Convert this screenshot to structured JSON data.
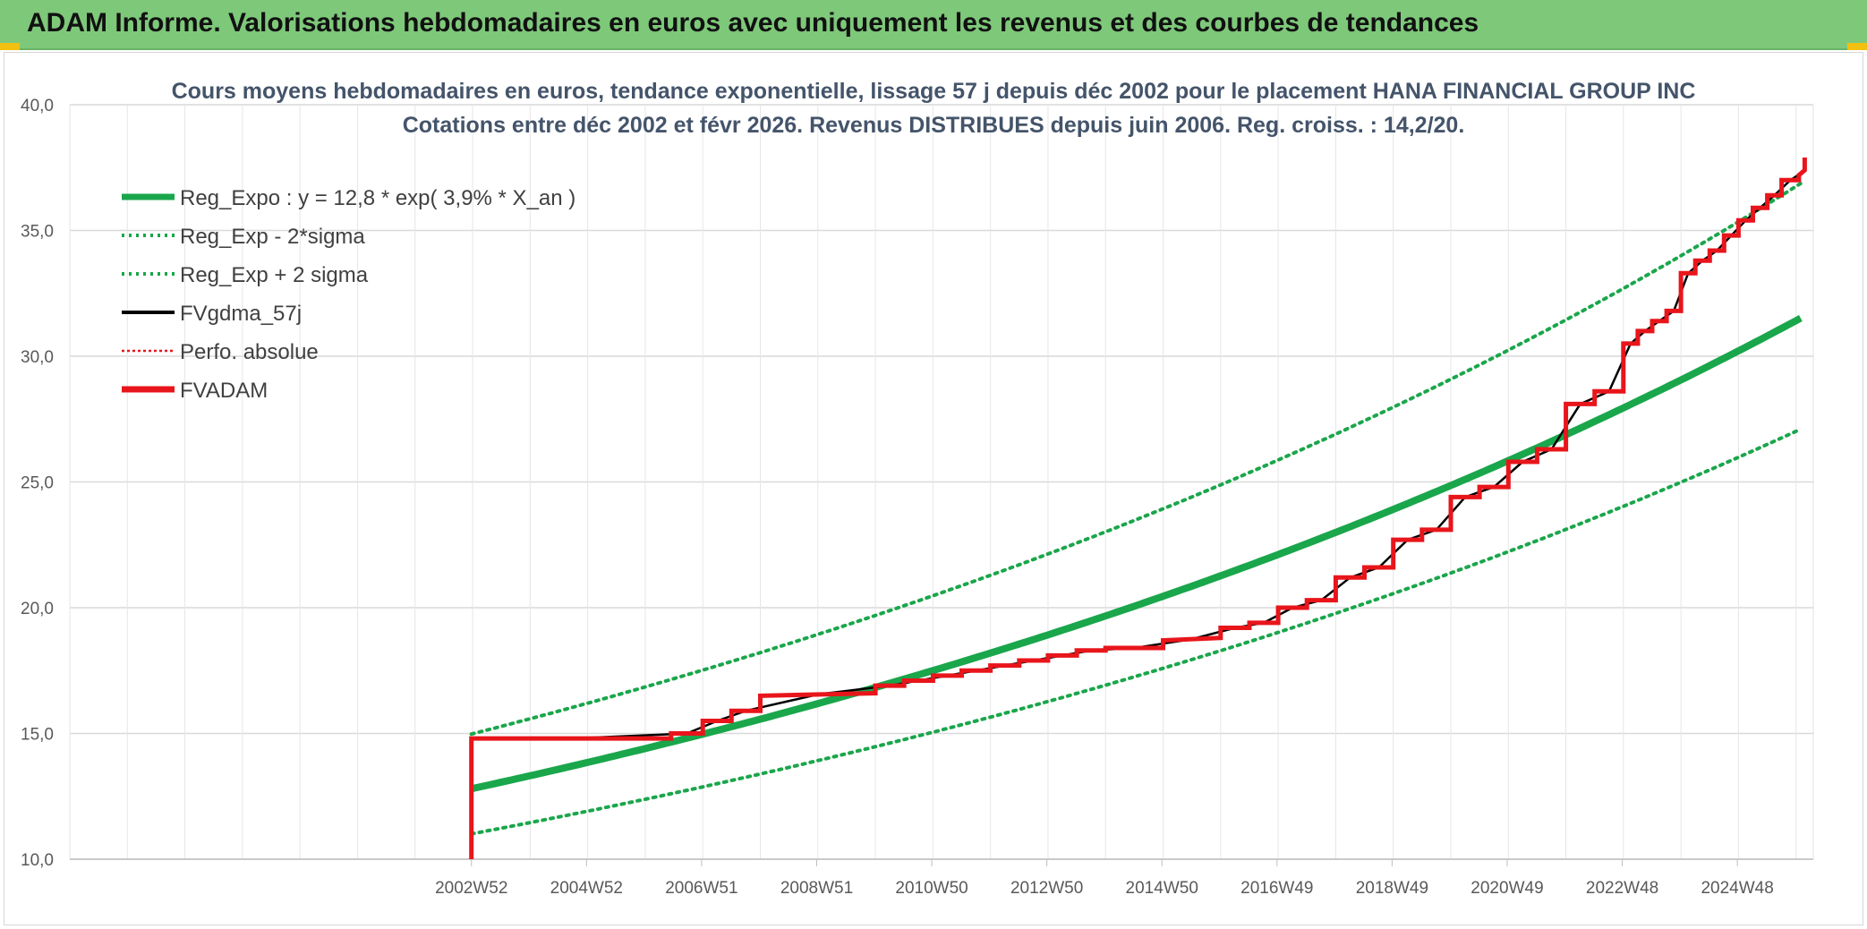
{
  "banner": {
    "title": "ADAM Informe. Valorisations hebdomadaires en euros avec uniquement les revenus et des courbes de tendances"
  },
  "colors": {
    "banner_bg": "#7ec87a",
    "reg_green": "#1aa64b",
    "fvgdma_black": "#000000",
    "fvadam_red": "#e8151b",
    "grid": "#d9d9d9"
  },
  "chart_data": {
    "type": "line",
    "title_lines": [
      "Cours moyens hebdomadaires en euros, tendance exponentielle, lissage 57 j depuis déc 2002 pour le placement HANA FINANCIAL GROUP INC",
      "Cotations entre déc 2002 et févr 2026. Revenus DISTRIBUES depuis juin 2006. Reg. croiss. : 14,2/20."
    ],
    "ylim": [
      10,
      40
    ],
    "y_ticks": [
      "10,0",
      "15,0",
      "20,0",
      "25,0",
      "30,0",
      "35,0",
      "40,0"
    ],
    "x_ticks": [
      "2002W52",
      "2004W52",
      "2006W51",
      "2008W51",
      "2010W50",
      "2012W50",
      "2014W50",
      "2016W49",
      "2018W49",
      "2020W49",
      "2022W48",
      "2024W48"
    ],
    "xlim_years": [
      1996.0,
      2026.3
    ],
    "grid": true,
    "legend_position": "top-left",
    "legend": [
      {
        "label": "Reg_Expo : y = 12,8 * exp( 3,9% *  X_an )",
        "style": "solid-thick",
        "color": "#1aa64b"
      },
      {
        "label": "Reg_Exp - 2*sigma",
        "style": "dotted",
        "color": "#1aa64b"
      },
      {
        "label": "Reg_Exp + 2 sigma",
        "style": "dotted",
        "color": "#1aa64b"
      },
      {
        "label": "FVgdma_57j",
        "style": "solid",
        "color": "#000000"
      },
      {
        "label": "Perfo. absolue",
        "style": "dotted-thin",
        "color": "#e8151b"
      },
      {
        "label": "FVADAM",
        "style": "solid-thick",
        "color": "#e8151b"
      }
    ],
    "regression": {
      "start_year": 2002.98,
      "end_year": 2026.15,
      "a": 12.8,
      "rate": 0.039,
      "lower_factor": 0.86,
      "upper_factor": 1.17
    },
    "fvadam_steps": [
      {
        "year": 2002.98,
        "value": 10.0
      },
      {
        "year": 2002.98,
        "value": 14.8
      },
      {
        "year": 2006.45,
        "value": 14.8
      },
      {
        "year": 2006.45,
        "value": 15.0
      },
      {
        "year": 2007.0,
        "value": 15.0
      },
      {
        "year": 2007.0,
        "value": 15.5
      },
      {
        "year": 2007.5,
        "value": 15.5
      },
      {
        "year": 2007.5,
        "value": 15.9
      },
      {
        "year": 2008.0,
        "value": 15.9
      },
      {
        "year": 2008.0,
        "value": 16.5
      },
      {
        "year": 2010.0,
        "value": 16.6
      },
      {
        "year": 2010.0,
        "value": 16.9
      },
      {
        "year": 2010.5,
        "value": 16.9
      },
      {
        "year": 2010.5,
        "value": 17.1
      },
      {
        "year": 2011.0,
        "value": 17.1
      },
      {
        "year": 2011.0,
        "value": 17.3
      },
      {
        "year": 2011.5,
        "value": 17.3
      },
      {
        "year": 2011.5,
        "value": 17.5
      },
      {
        "year": 2012.0,
        "value": 17.5
      },
      {
        "year": 2012.0,
        "value": 17.7
      },
      {
        "year": 2012.5,
        "value": 17.7
      },
      {
        "year": 2012.5,
        "value": 17.9
      },
      {
        "year": 2013.0,
        "value": 17.9
      },
      {
        "year": 2013.0,
        "value": 18.1
      },
      {
        "year": 2013.5,
        "value": 18.1
      },
      {
        "year": 2013.5,
        "value": 18.3
      },
      {
        "year": 2014.0,
        "value": 18.3
      },
      {
        "year": 2014.0,
        "value": 18.4
      },
      {
        "year": 2015.0,
        "value": 18.4
      },
      {
        "year": 2015.0,
        "value": 18.7
      },
      {
        "year": 2016.0,
        "value": 18.8
      },
      {
        "year": 2016.0,
        "value": 19.2
      },
      {
        "year": 2016.5,
        "value": 19.2
      },
      {
        "year": 2016.5,
        "value": 19.4
      },
      {
        "year": 2017.0,
        "value": 19.4
      },
      {
        "year": 2017.0,
        "value": 20.0
      },
      {
        "year": 2017.5,
        "value": 20.0
      },
      {
        "year": 2017.5,
        "value": 20.3
      },
      {
        "year": 2018.0,
        "value": 20.3
      },
      {
        "year": 2018.0,
        "value": 21.2
      },
      {
        "year": 2018.5,
        "value": 21.2
      },
      {
        "year": 2018.5,
        "value": 21.6
      },
      {
        "year": 2019.0,
        "value": 21.6
      },
      {
        "year": 2019.0,
        "value": 22.7
      },
      {
        "year": 2019.5,
        "value": 22.7
      },
      {
        "year": 2019.5,
        "value": 23.1
      },
      {
        "year": 2020.0,
        "value": 23.1
      },
      {
        "year": 2020.0,
        "value": 24.4
      },
      {
        "year": 2020.5,
        "value": 24.4
      },
      {
        "year": 2020.5,
        "value": 24.8
      },
      {
        "year": 2021.0,
        "value": 24.8
      },
      {
        "year": 2021.0,
        "value": 25.8
      },
      {
        "year": 2021.5,
        "value": 25.8
      },
      {
        "year": 2021.5,
        "value": 26.3
      },
      {
        "year": 2022.0,
        "value": 26.3
      },
      {
        "year": 2022.0,
        "value": 28.1
      },
      {
        "year": 2022.5,
        "value": 28.1
      },
      {
        "year": 2022.5,
        "value": 28.6
      },
      {
        "year": 2023.0,
        "value": 28.6
      },
      {
        "year": 2023.0,
        "value": 30.5
      },
      {
        "year": 2023.25,
        "value": 30.5
      },
      {
        "year": 2023.25,
        "value": 31.0
      },
      {
        "year": 2023.5,
        "value": 31.0
      },
      {
        "year": 2023.5,
        "value": 31.4
      },
      {
        "year": 2023.75,
        "value": 31.4
      },
      {
        "year": 2023.75,
        "value": 31.8
      },
      {
        "year": 2024.0,
        "value": 31.8
      },
      {
        "year": 2024.0,
        "value": 33.3
      },
      {
        "year": 2024.25,
        "value": 33.3
      },
      {
        "year": 2024.25,
        "value": 33.8
      },
      {
        "year": 2024.5,
        "value": 33.8
      },
      {
        "year": 2024.5,
        "value": 34.2
      },
      {
        "year": 2024.75,
        "value": 34.2
      },
      {
        "year": 2024.75,
        "value": 34.8
      },
      {
        "year": 2025.0,
        "value": 34.8
      },
      {
        "year": 2025.0,
        "value": 35.4
      },
      {
        "year": 2025.25,
        "value": 35.4
      },
      {
        "year": 2025.25,
        "value": 35.9
      },
      {
        "year": 2025.5,
        "value": 35.9
      },
      {
        "year": 2025.5,
        "value": 36.4
      },
      {
        "year": 2025.75,
        "value": 36.4
      },
      {
        "year": 2025.75,
        "value": 37.0
      },
      {
        "year": 2026.05,
        "value": 37.0
      },
      {
        "year": 2026.05,
        "value": 37.2
      },
      {
        "year": 2026.15,
        "value": 37.4
      },
      {
        "year": 2026.15,
        "value": 37.9
      }
    ]
  }
}
